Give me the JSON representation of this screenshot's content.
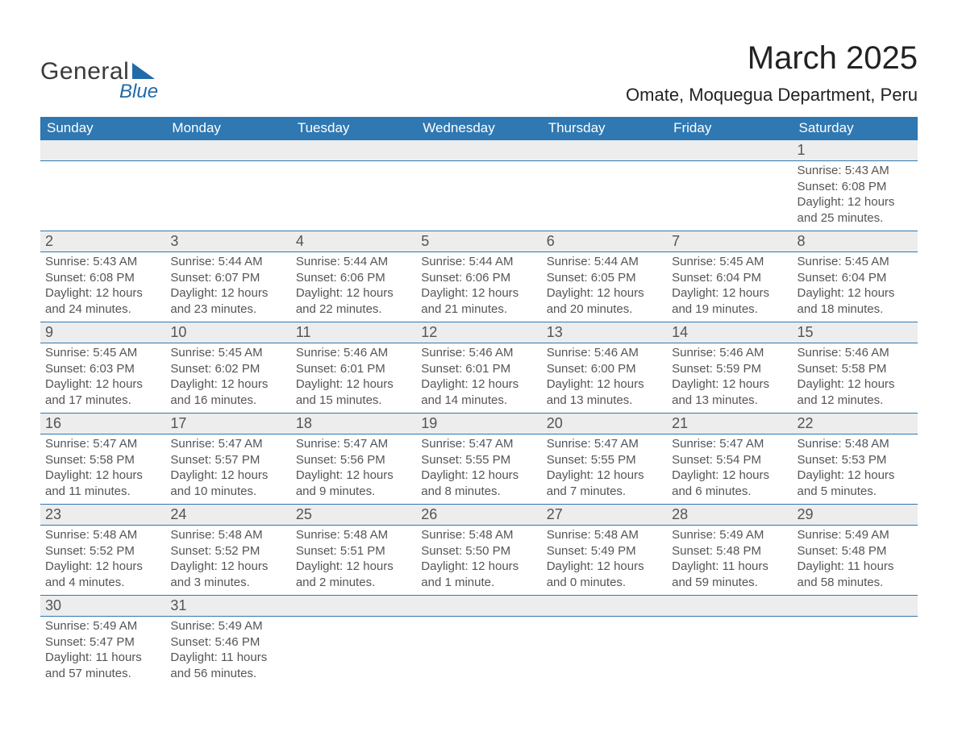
{
  "logo": {
    "general": "General",
    "blue": "Blue"
  },
  "header": {
    "title": "March 2025",
    "location": "Omate, Moquegua Department, Peru"
  },
  "colors": {
    "header_bg": "#2f78b2",
    "header_text": "#ffffff",
    "daynum_bg": "#ededed",
    "row_border": "#2f78b2",
    "body_text": "#555555",
    "title_text": "#222222",
    "logo_accent": "#206ba8"
  },
  "calendar": {
    "type": "table",
    "day_names": [
      "Sunday",
      "Monday",
      "Tuesday",
      "Wednesday",
      "Thursday",
      "Friday",
      "Saturday"
    ],
    "weeks": [
      [
        null,
        null,
        null,
        null,
        null,
        null,
        {
          "d": "1",
          "sr": "Sunrise: 5:43 AM",
          "ss": "Sunset: 6:08 PM",
          "dl1": "Daylight: 12 hours",
          "dl2": "and 25 minutes."
        }
      ],
      [
        {
          "d": "2",
          "sr": "Sunrise: 5:43 AM",
          "ss": "Sunset: 6:08 PM",
          "dl1": "Daylight: 12 hours",
          "dl2": "and 24 minutes."
        },
        {
          "d": "3",
          "sr": "Sunrise: 5:44 AM",
          "ss": "Sunset: 6:07 PM",
          "dl1": "Daylight: 12 hours",
          "dl2": "and 23 minutes."
        },
        {
          "d": "4",
          "sr": "Sunrise: 5:44 AM",
          "ss": "Sunset: 6:06 PM",
          "dl1": "Daylight: 12 hours",
          "dl2": "and 22 minutes."
        },
        {
          "d": "5",
          "sr": "Sunrise: 5:44 AM",
          "ss": "Sunset: 6:06 PM",
          "dl1": "Daylight: 12 hours",
          "dl2": "and 21 minutes."
        },
        {
          "d": "6",
          "sr": "Sunrise: 5:44 AM",
          "ss": "Sunset: 6:05 PM",
          "dl1": "Daylight: 12 hours",
          "dl2": "and 20 minutes."
        },
        {
          "d": "7",
          "sr": "Sunrise: 5:45 AM",
          "ss": "Sunset: 6:04 PM",
          "dl1": "Daylight: 12 hours",
          "dl2": "and 19 minutes."
        },
        {
          "d": "8",
          "sr": "Sunrise: 5:45 AM",
          "ss": "Sunset: 6:04 PM",
          "dl1": "Daylight: 12 hours",
          "dl2": "and 18 minutes."
        }
      ],
      [
        {
          "d": "9",
          "sr": "Sunrise: 5:45 AM",
          "ss": "Sunset: 6:03 PM",
          "dl1": "Daylight: 12 hours",
          "dl2": "and 17 minutes."
        },
        {
          "d": "10",
          "sr": "Sunrise: 5:45 AM",
          "ss": "Sunset: 6:02 PM",
          "dl1": "Daylight: 12 hours",
          "dl2": "and 16 minutes."
        },
        {
          "d": "11",
          "sr": "Sunrise: 5:46 AM",
          "ss": "Sunset: 6:01 PM",
          "dl1": "Daylight: 12 hours",
          "dl2": "and 15 minutes."
        },
        {
          "d": "12",
          "sr": "Sunrise: 5:46 AM",
          "ss": "Sunset: 6:01 PM",
          "dl1": "Daylight: 12 hours",
          "dl2": "and 14 minutes."
        },
        {
          "d": "13",
          "sr": "Sunrise: 5:46 AM",
          "ss": "Sunset: 6:00 PM",
          "dl1": "Daylight: 12 hours",
          "dl2": "and 13 minutes."
        },
        {
          "d": "14",
          "sr": "Sunrise: 5:46 AM",
          "ss": "Sunset: 5:59 PM",
          "dl1": "Daylight: 12 hours",
          "dl2": "and 13 minutes."
        },
        {
          "d": "15",
          "sr": "Sunrise: 5:46 AM",
          "ss": "Sunset: 5:58 PM",
          "dl1": "Daylight: 12 hours",
          "dl2": "and 12 minutes."
        }
      ],
      [
        {
          "d": "16",
          "sr": "Sunrise: 5:47 AM",
          "ss": "Sunset: 5:58 PM",
          "dl1": "Daylight: 12 hours",
          "dl2": "and 11 minutes."
        },
        {
          "d": "17",
          "sr": "Sunrise: 5:47 AM",
          "ss": "Sunset: 5:57 PM",
          "dl1": "Daylight: 12 hours",
          "dl2": "and 10 minutes."
        },
        {
          "d": "18",
          "sr": "Sunrise: 5:47 AM",
          "ss": "Sunset: 5:56 PM",
          "dl1": "Daylight: 12 hours",
          "dl2": "and 9 minutes."
        },
        {
          "d": "19",
          "sr": "Sunrise: 5:47 AM",
          "ss": "Sunset: 5:55 PM",
          "dl1": "Daylight: 12 hours",
          "dl2": "and 8 minutes."
        },
        {
          "d": "20",
          "sr": "Sunrise: 5:47 AM",
          "ss": "Sunset: 5:55 PM",
          "dl1": "Daylight: 12 hours",
          "dl2": "and 7 minutes."
        },
        {
          "d": "21",
          "sr": "Sunrise: 5:47 AM",
          "ss": "Sunset: 5:54 PM",
          "dl1": "Daylight: 12 hours",
          "dl2": "and 6 minutes."
        },
        {
          "d": "22",
          "sr": "Sunrise: 5:48 AM",
          "ss": "Sunset: 5:53 PM",
          "dl1": "Daylight: 12 hours",
          "dl2": "and 5 minutes."
        }
      ],
      [
        {
          "d": "23",
          "sr": "Sunrise: 5:48 AM",
          "ss": "Sunset: 5:52 PM",
          "dl1": "Daylight: 12 hours",
          "dl2": "and 4 minutes."
        },
        {
          "d": "24",
          "sr": "Sunrise: 5:48 AM",
          "ss": "Sunset: 5:52 PM",
          "dl1": "Daylight: 12 hours",
          "dl2": "and 3 minutes."
        },
        {
          "d": "25",
          "sr": "Sunrise: 5:48 AM",
          "ss": "Sunset: 5:51 PM",
          "dl1": "Daylight: 12 hours",
          "dl2": "and 2 minutes."
        },
        {
          "d": "26",
          "sr": "Sunrise: 5:48 AM",
          "ss": "Sunset: 5:50 PM",
          "dl1": "Daylight: 12 hours",
          "dl2": "and 1 minute."
        },
        {
          "d": "27",
          "sr": "Sunrise: 5:48 AM",
          "ss": "Sunset: 5:49 PM",
          "dl1": "Daylight: 12 hours",
          "dl2": "and 0 minutes."
        },
        {
          "d": "28",
          "sr": "Sunrise: 5:49 AM",
          "ss": "Sunset: 5:48 PM",
          "dl1": "Daylight: 11 hours",
          "dl2": "and 59 minutes."
        },
        {
          "d": "29",
          "sr": "Sunrise: 5:49 AM",
          "ss": "Sunset: 5:48 PM",
          "dl1": "Daylight: 11 hours",
          "dl2": "and 58 minutes."
        }
      ],
      [
        {
          "d": "30",
          "sr": "Sunrise: 5:49 AM",
          "ss": "Sunset: 5:47 PM",
          "dl1": "Daylight: 11 hours",
          "dl2": "and 57 minutes."
        },
        {
          "d": "31",
          "sr": "Sunrise: 5:49 AM",
          "ss": "Sunset: 5:46 PM",
          "dl1": "Daylight: 11 hours",
          "dl2": "and 56 minutes."
        },
        null,
        null,
        null,
        null,
        null
      ]
    ]
  }
}
